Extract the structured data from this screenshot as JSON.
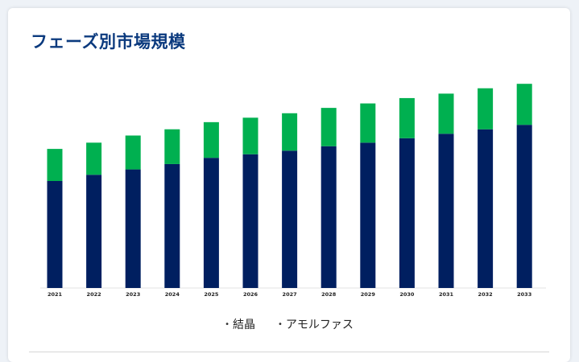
{
  "title": "フェーズ別市場規模",
  "chart_data": {
    "type": "bar",
    "stacked": true,
    "categories": [
      "2021",
      "2022",
      "2023",
      "2024",
      "2025",
      "2026",
      "2027",
      "2028",
      "2029",
      "2030",
      "2031",
      "2032",
      "2033"
    ],
    "series": [
      {
        "name": "結晶",
        "color": "#001f60",
        "values": [
          120,
          127,
          133,
          139,
          146,
          150,
          154,
          159,
          163,
          168,
          173,
          178,
          183
        ]
      },
      {
        "name": "アモルファス",
        "color": "#00b050",
        "values": [
          36,
          36,
          38,
          39,
          40,
          41,
          42,
          43,
          44,
          45,
          45,
          46,
          46
        ]
      }
    ],
    "ylim": [
      0,
      240
    ],
    "grid": false,
    "legend_position": "bottom-center"
  }
}
